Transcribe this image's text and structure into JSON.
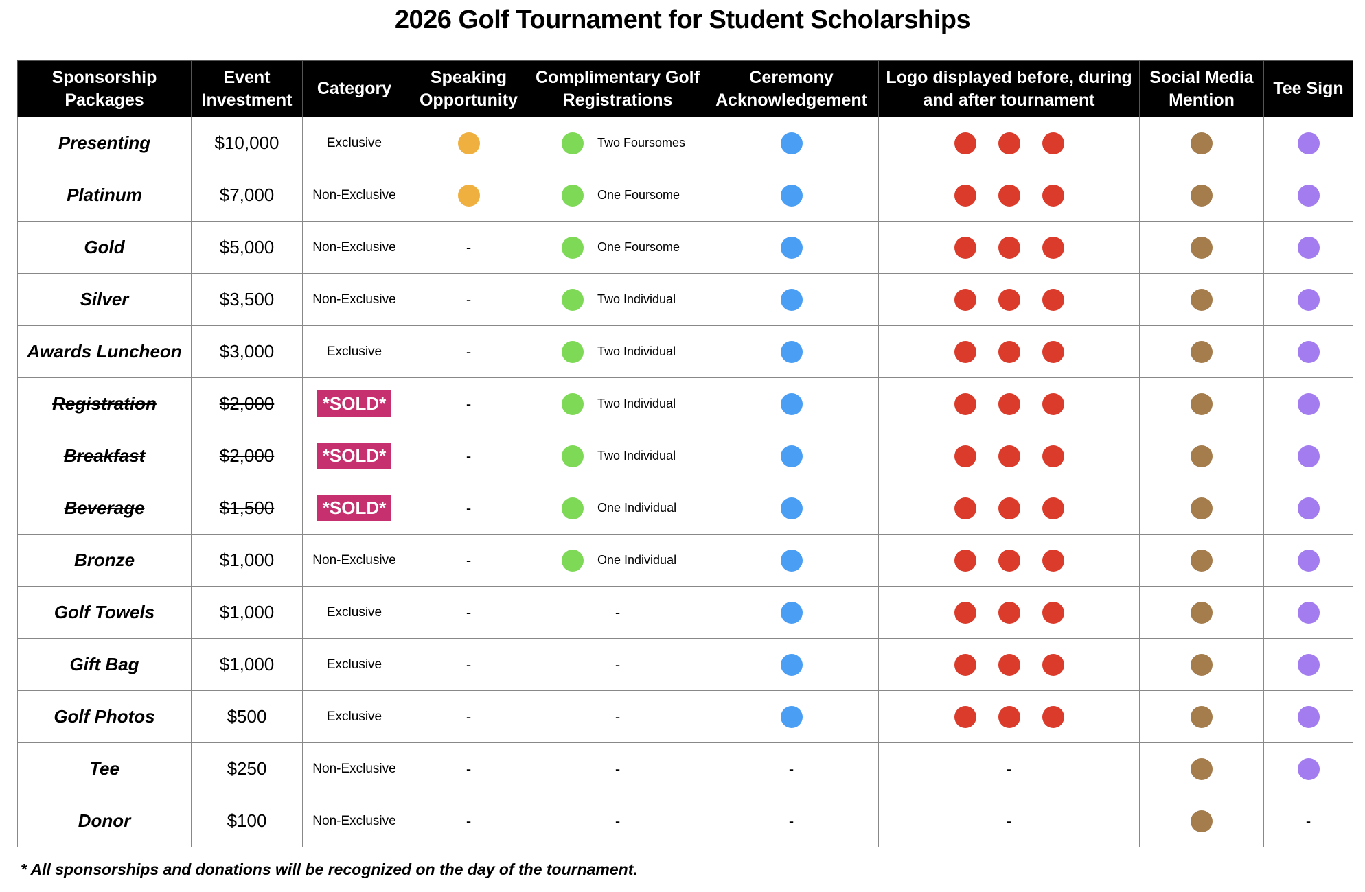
{
  "title": "2026 Golf Tournament for Student Scholarships",
  "headers": [
    "Sponsorship Packages",
    "Event Investment",
    "Category",
    "Speaking Opportunity",
    "Complimentary Golf Registrations",
    "Ceremony Acknowledgement",
    "Logo displayed before, during and after tournament",
    "Social Media Mention",
    "Tee Sign"
  ],
  "colors": {
    "speaking": "#F0B03F",
    "registration": "#7ED957",
    "ceremony": "#4A9FF5",
    "logo": "#DB3B2A",
    "social": "#A57C4B",
    "tee": "#A37CF0",
    "sold": "#C7306F"
  },
  "dash": "-",
  "rows": [
    {
      "name": "Presenting",
      "price": "$10,000",
      "category": "Exclusive",
      "sold": false,
      "speaking": true,
      "registration": "Two Foursomes",
      "ceremony": true,
      "logo": true,
      "social": true,
      "tee": true
    },
    {
      "name": "Platinum",
      "price": "$7,000",
      "category": "Non-Exclusive",
      "sold": false,
      "speaking": true,
      "registration": "One Foursome",
      "ceremony": true,
      "logo": true,
      "social": true,
      "tee": true
    },
    {
      "name": "Gold",
      "price": "$5,000",
      "category": "Non-Exclusive",
      "sold": false,
      "speaking": false,
      "registration": "One Foursome",
      "ceremony": true,
      "logo": true,
      "social": true,
      "tee": true
    },
    {
      "name": "Silver",
      "price": "$3,500",
      "category": "Non-Exclusive",
      "sold": false,
      "speaking": false,
      "registration": "Two Individual",
      "ceremony": true,
      "logo": true,
      "social": true,
      "tee": true
    },
    {
      "name": "Awards Luncheon",
      "price": "$3,000",
      "category": "Exclusive",
      "sold": false,
      "speaking": false,
      "registration": "Two Individual",
      "ceremony": true,
      "logo": true,
      "social": true,
      "tee": true
    },
    {
      "name": "Registration",
      "price": "$2,000",
      "category": "*SOLD*",
      "sold": true,
      "speaking": false,
      "registration": "Two Individual",
      "ceremony": true,
      "logo": true,
      "social": true,
      "tee": true
    },
    {
      "name": "Breakfast",
      "price": "$2,000",
      "category": "*SOLD*",
      "sold": true,
      "speaking": false,
      "registration": "Two Individual",
      "ceremony": true,
      "logo": true,
      "social": true,
      "tee": true
    },
    {
      "name": "Beverage",
      "price": "$1,500",
      "category": "*SOLD*",
      "sold": true,
      "speaking": false,
      "registration": "One Individual",
      "ceremony": true,
      "logo": true,
      "social": true,
      "tee": true
    },
    {
      "name": "Bronze",
      "price": "$1,000",
      "category": "Non-Exclusive",
      "sold": false,
      "speaking": false,
      "registration": "One Individual",
      "ceremony": true,
      "logo": true,
      "social": true,
      "tee": true
    },
    {
      "name": "Golf Towels",
      "price": "$1,000",
      "category": "Exclusive",
      "sold": false,
      "speaking": false,
      "registration": null,
      "ceremony": true,
      "logo": true,
      "social": true,
      "tee": true
    },
    {
      "name": "Gift Bag",
      "price": "$1,000",
      "category": "Exclusive",
      "sold": false,
      "speaking": false,
      "registration": null,
      "ceremony": true,
      "logo": true,
      "social": true,
      "tee": true
    },
    {
      "name": "Golf Photos",
      "price": "$500",
      "category": "Exclusive",
      "sold": false,
      "speaking": false,
      "registration": null,
      "ceremony": true,
      "logo": true,
      "social": true,
      "tee": true
    },
    {
      "name": "Tee",
      "price": "$250",
      "category": "Non-Exclusive",
      "sold": false,
      "speaking": false,
      "registration": null,
      "ceremony": false,
      "logo": false,
      "social": true,
      "tee": true
    },
    {
      "name": "Donor",
      "price": "$100",
      "category": "Non-Exclusive",
      "sold": false,
      "speaking": false,
      "registration": null,
      "ceremony": false,
      "logo": false,
      "social": true,
      "tee": false
    }
  ],
  "footnote": "* All sponsorships and donations will be recognized on the day of the tournament."
}
